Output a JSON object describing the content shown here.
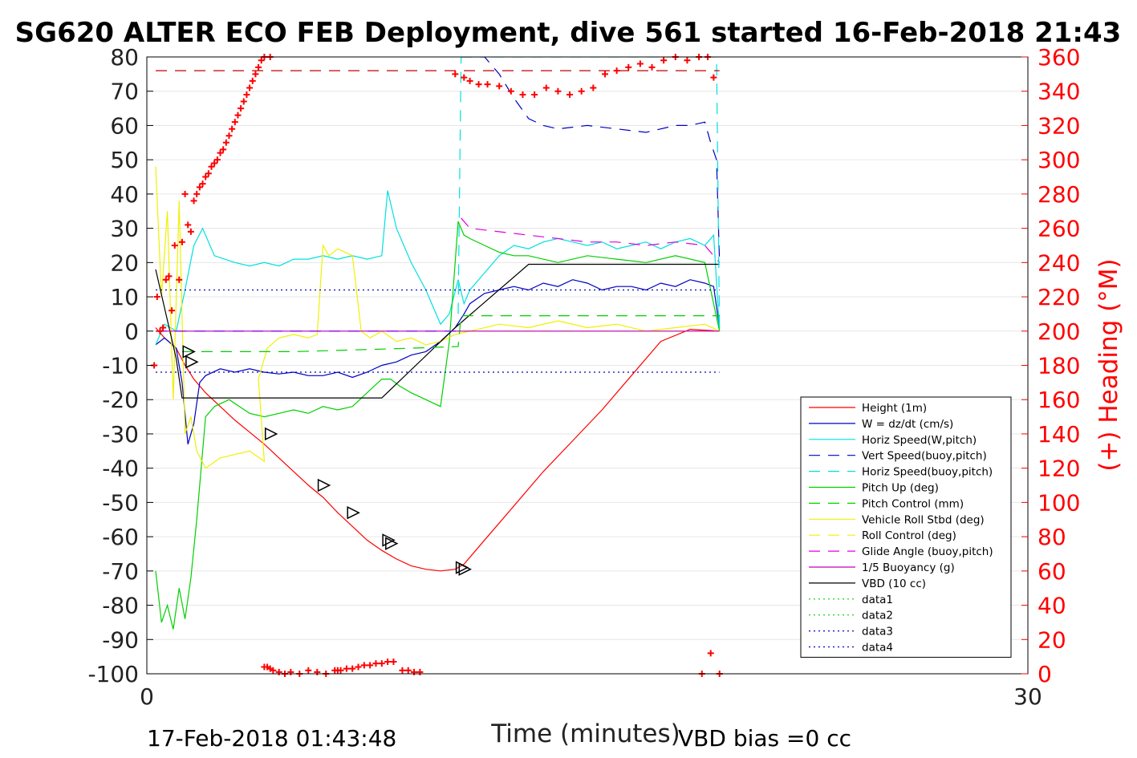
{
  "chart_data": {
    "type": "line",
    "title": "SG620 ALTER ECO FEB Deployment, dive 561 started 16-Feb-2018 21:43",
    "xlabel": "Time (minutes)",
    "ylabel_right": "(+) Heading (°M)",
    "xlim": [
      0,
      30
    ],
    "ylim": [
      -100,
      80
    ],
    "y2lim": [
      0,
      360
    ],
    "x_ticks": [
      "0",
      "30"
    ],
    "y_ticks": [
      "80",
      "70",
      "60",
      "50",
      "40",
      "30",
      "20",
      "10",
      "0",
      "-10",
      "-20",
      "-30",
      "-40",
      "-50",
      "-60",
      "-70",
      "-80",
      "-90",
      "-100"
    ],
    "y2_ticks": [
      "360",
      "340",
      "320",
      "300",
      "280",
      "260",
      "240",
      "220",
      "200",
      "180",
      "160",
      "140",
      "120",
      "100",
      "80",
      "60",
      "40",
      "20",
      "0"
    ],
    "footer_left": "17-Feb-2018 01:43:48",
    "footer_right": "VBD bias =0 cc",
    "grid": true,
    "legend_position": "bottom-right",
    "legend": [
      {
        "name": "Height (1m)",
        "color": "#ff0000",
        "dash": "solid"
      },
      {
        "name": "W = dz/dt (cm/s)",
        "color": "#0000c0",
        "dash": "solid"
      },
      {
        "name": "Horiz Speed(W,pitch)",
        "color": "#00e0e0",
        "dash": "solid"
      },
      {
        "name": "Vert Speed(buoy,pitch)",
        "color": "#0000c0",
        "dash": "dashed"
      },
      {
        "name": "Horiz Speed(buoy,pitch)",
        "color": "#00e0e0",
        "dash": "dashed"
      },
      {
        "name": "Pitch Up (deg)",
        "color": "#00d000",
        "dash": "solid"
      },
      {
        "name": "Pitch Control (mm)",
        "color": "#00d000",
        "dash": "dashed"
      },
      {
        "name": "Vehicle Roll Stbd (deg)",
        "color": "#f0f000",
        "dash": "solid"
      },
      {
        "name": "Roll Control (deg)",
        "color": "#f0f000",
        "dash": "dashed"
      },
      {
        "name": "Glide Angle (buoy,pitch)",
        "color": "#e000e0",
        "dash": "dashed"
      },
      {
        "name": "1/5 Buoyancy (g)",
        "color": "#c000c0",
        "dash": "solid"
      },
      {
        "name": "VBD (10 cc)",
        "color": "#000000",
        "dash": "solid"
      },
      {
        "name": "data1",
        "color": "#00d000",
        "dash": "dotted"
      },
      {
        "name": "data2",
        "color": "#00d000",
        "dash": "dotted"
      },
      {
        "name": "data3",
        "color": "#0000c0",
        "dash": "dotted"
      },
      {
        "name": "data4",
        "color": "#0000c0",
        "dash": "dotted"
      }
    ],
    "series": [
      {
        "name": "Height (1m)",
        "axis": "left",
        "color": "#ff0000",
        "dash": "solid",
        "x": [
          0.3,
          0.6,
          1,
          1.3,
          1.6,
          2,
          2.5,
          3,
          3.5,
          4,
          4.5,
          5,
          5.5,
          6,
          6.5,
          7,
          7.5,
          8,
          8.5,
          9,
          9.5,
          10,
          10.5,
          10.8,
          11.2,
          11.7,
          12.5,
          13.5,
          14.5,
          15.5,
          16.5,
          17.5,
          18.5,
          19.5
        ],
        "y": [
          1,
          -2,
          -5,
          -10,
          -14,
          -18,
          -22,
          -26,
          -29.5,
          -33,
          -37,
          -41,
          -45,
          -48.5,
          -53,
          -57,
          -61,
          -64,
          -66.5,
          -68.5,
          -69.5,
          -70,
          -69.5,
          -68,
          -64,
          -59,
          -51,
          -41,
          -32,
          -23,
          -13,
          -3,
          0.5,
          0
        ]
      },
      {
        "name": "W = dz/dt (cm/s)",
        "axis": "left",
        "color": "#0000c0",
        "dash": "solid",
        "x": [
          0.3,
          0.6,
          1,
          1.2,
          1.4,
          1.6,
          1.8,
          2,
          2.5,
          3,
          3.5,
          4,
          4.5,
          5,
          5.5,
          6,
          6.5,
          7,
          7.5,
          8,
          8.5,
          9,
          9.5,
          10,
          10.5,
          10.8,
          11,
          11.5,
          12,
          12.5,
          13,
          13.5,
          14,
          14.5,
          15,
          15.5,
          16,
          16.5,
          17,
          17.5,
          18,
          18.5,
          19,
          19.3,
          19.5
        ],
        "y": [
          -4,
          -2,
          -5,
          -15,
          -33,
          -27,
          -15,
          -13,
          -11,
          -12,
          -11,
          -12,
          -12.5,
          -12,
          -13,
          -13,
          -12,
          -13.5,
          -12,
          -10,
          -9,
          -7,
          -6,
          -3,
          1,
          5,
          8,
          11,
          12,
          13,
          12,
          14,
          13,
          15,
          14,
          12,
          13,
          13,
          12,
          14,
          13,
          15,
          14,
          13,
          1
        ]
      },
      {
        "name": "Horiz Speed(W,pitch)",
        "axis": "left",
        "color": "#00e0e0",
        "dash": "solid",
        "x": [
          0.3,
          0.6,
          1,
          1.3,
          1.6,
          1.9,
          2.3,
          3,
          3.5,
          4,
          4.5,
          5,
          5.5,
          6,
          6.5,
          7,
          7.5,
          8,
          8.2,
          8.5,
          9,
          9.5,
          10,
          10.3,
          10.6,
          10.8,
          11,
          11.5,
          12,
          12.5,
          13,
          13.5,
          14,
          14.5,
          15,
          15.5,
          16,
          16.5,
          17,
          17.5,
          18,
          18.5,
          19,
          19.3,
          19.5
        ],
        "y": [
          -4,
          2,
          0,
          12,
          25,
          30,
          22,
          20,
          19,
          20,
          19,
          21,
          21,
          22,
          21,
          22,
          21,
          22,
          41,
          30,
          20,
          12,
          2,
          5,
          15,
          8,
          12,
          17,
          22,
          25,
          24,
          26,
          27,
          26,
          25,
          26,
          24,
          25,
          26,
          24,
          26,
          27,
          25,
          28,
          0
        ]
      },
      {
        "name": "Pitch Up (deg)",
        "axis": "left",
        "color": "#00d000",
        "dash": "solid",
        "x": [
          0.3,
          0.5,
          0.7,
          0.9,
          1.1,
          1.3,
          1.5,
          1.7,
          2,
          2.3,
          2.8,
          3.5,
          4,
          4.5,
          5,
          5.5,
          6,
          6.5,
          7,
          7.5,
          8,
          8.3,
          8.6,
          9,
          9.5,
          10,
          10.3,
          10.6,
          10.8,
          11,
          11.5,
          12,
          12.5,
          13,
          14,
          15,
          16,
          17,
          18,
          19,
          19.5
        ],
        "y": [
          -70,
          -85,
          -80,
          -87,
          -75,
          -84,
          -72,
          -55,
          -25,
          -22,
          -20,
          -24,
          -25,
          -24,
          -23,
          -24,
          -22,
          -23,
          -22,
          -18,
          -14,
          -14,
          -16,
          -18,
          -20,
          -22,
          -3,
          32,
          28,
          27,
          25,
          23,
          22,
          22,
          20,
          22,
          21,
          20,
          22,
          20,
          0
        ]
      },
      {
        "name": "Vehicle Roll Stbd (deg)",
        "axis": "left",
        "color": "#f0f000",
        "dash": "solid",
        "x": [
          0.3,
          0.5,
          0.7,
          0.9,
          1.1,
          1.3,
          1.5,
          1.7,
          2,
          2.5,
          3,
          3.5,
          4,
          3.8,
          4.1,
          4.5,
          5,
          5.5,
          5.8,
          6,
          6.2,
          6.5,
          7,
          7.3,
          7.6,
          8,
          8.5,
          9,
          9.5,
          10,
          10.5,
          11,
          12,
          13,
          14,
          15,
          16,
          17,
          18,
          19,
          19.5
        ],
        "y": [
          48,
          10,
          35,
          -20,
          38,
          -30,
          -25,
          -35,
          -40,
          -37,
          -36,
          -35,
          -38,
          -14,
          -5,
          -2,
          -1,
          -2,
          -1,
          25,
          22,
          24,
          22,
          0,
          -2,
          0,
          -3,
          -2,
          -4,
          -3,
          -1,
          0,
          2,
          1,
          3,
          1,
          2,
          0,
          1,
          2,
          0
        ]
      },
      {
        "name": "Glide Angle (buoy,pitch)",
        "axis": "left",
        "color": "#e000e0",
        "dash": "dashed",
        "x": [
          10.7,
          11,
          12,
          13,
          14,
          15,
          16,
          17,
          18,
          19,
          19.5
        ],
        "y": [
          33,
          30,
          29,
          28,
          27,
          26,
          26,
          25,
          26,
          25,
          20
        ]
      },
      {
        "name": "VBD (10 cc)",
        "axis": "left",
        "color": "#000000",
        "dash": "solid",
        "x": [
          0.3,
          1,
          1.2,
          8,
          10.5,
          13,
          19.5
        ],
        "y": [
          18,
          -8,
          -19.5,
          -19.5,
          1,
          19.5,
          19.5
        ]
      },
      {
        "name": "Vert Speed(buoy,pitch)",
        "axis": "left",
        "color": "#0000c0",
        "dash": "dashed",
        "x": [
          10.7,
          10.8,
          11,
          11.5,
          12,
          12.5,
          13,
          13.5,
          14,
          15,
          16,
          17,
          18,
          18.5,
          19,
          19.2,
          19.4,
          19.5
        ],
        "y": [
          80,
          80,
          80,
          80,
          75,
          68,
          62,
          60,
          59,
          60,
          59,
          58,
          60,
          60,
          61,
          55,
          50,
          20
        ]
      },
      {
        "name": "Horiz Speed(buoy,pitch)",
        "axis": "left",
        "color": "#00e0e0",
        "dash": "dashed",
        "x": [
          10.6,
          10.7,
          10.8,
          11,
          19.4,
          19.5
        ],
        "y": [
          5,
          80,
          80,
          80,
          80,
          0
        ]
      },
      {
        "name": "Pitch Control (mm)",
        "axis": "left",
        "color": "#00d000",
        "dash": "dashed",
        "x": [
          1.2,
          3,
          5,
          7,
          9,
          10.6,
          10.7,
          19.5
        ],
        "y": [
          -6,
          -6,
          -6,
          -5.5,
          -5,
          -4.5,
          4.5,
          4.5
        ]
      },
      {
        "name": "Roll Control (deg)",
        "axis": "left",
        "color": "#f0f000",
        "dash": "dashed",
        "x": [
          0.3,
          19.5
        ],
        "y": [
          0,
          0
        ]
      },
      {
        "name": "1/5 Buoyancy (g)",
        "axis": "left",
        "color": "#c000c0",
        "dash": "solid",
        "x": [
          0.3,
          19.5
        ],
        "y": [
          0,
          0
        ]
      },
      {
        "name": "data1",
        "axis": "left",
        "color": "#8000ff",
        "dash": "dashed",
        "x": [
          0.3,
          10.7
        ],
        "y": [
          0,
          0
        ]
      },
      {
        "name": "data3",
        "axis": "left",
        "color": "#0000c0",
        "dash": "dotted",
        "x": [
          0.3,
          19.5
        ],
        "y": [
          12,
          12
        ]
      },
      {
        "name": "data4",
        "axis": "left",
        "color": "#0000c0",
        "dash": "dotted",
        "x": [
          0.3,
          19.5
        ],
        "y": [
          -12,
          -12
        ]
      },
      {
        "name": "data2",
        "axis": "left",
        "color": "#c00000",
        "dash": "dashed",
        "x": [
          0.3,
          19.5
        ],
        "y": [
          76,
          76
        ]
      }
    ],
    "heading_points": {
      "axis": "right",
      "color": "#ff0000",
      "marker": "+",
      "x": [
        0.25,
        0.35,
        0.45,
        0.55,
        0.65,
        0.75,
        0.85,
        0.95,
        1.1,
        1.2,
        1.3,
        1.4,
        1.5,
        1.6,
        1.7,
        1.8,
        1.9,
        2,
        2.1,
        2.2,
        2.3,
        2.4,
        2.5,
        2.6,
        2.7,
        2.8,
        2.9,
        3,
        3.1,
        3.2,
        3.3,
        3.4,
        3.5,
        3.6,
        3.7,
        3.8,
        3.9,
        4.0,
        4.2,
        6.4,
        6.6,
        6.8,
        7,
        7.2,
        7.4,
        7.6,
        7.8,
        8,
        8.2,
        8.4,
        9.3,
        10.5,
        10.8,
        11,
        11.3,
        11.6,
        12,
        12.4,
        12.8,
        13.2,
        13.6,
        14,
        14.4,
        14.8,
        15.2,
        15.6,
        16,
        16.4,
        16.8,
        17.2,
        17.6,
        18,
        18.4,
        18.8,
        19.1,
        19.3,
        4,
        4.1,
        4.2,
        4.3,
        4.5,
        4.7,
        4.9,
        5.2,
        5.5,
        5.8,
        6.1,
        6.5,
        8.7,
        8.9,
        9.1,
        18.9,
        19.2,
        19.5
      ],
      "y": [
        180,
        220,
        200,
        202,
        230,
        232,
        212,
        250,
        230,
        252,
        280,
        262,
        258,
        276,
        280,
        284,
        286,
        290,
        292,
        296,
        298,
        300,
        304,
        306,
        310,
        314,
        318,
        322,
        326,
        330,
        334,
        338,
        342,
        346,
        350,
        354,
        358,
        360,
        360,
        2,
        2,
        3,
        3,
        4,
        5,
        5,
        6,
        6,
        7,
        7,
        1,
        350,
        348,
        346,
        344,
        344,
        343,
        340,
        338,
        338,
        342,
        340,
        338,
        340,
        342,
        350,
        352,
        354,
        356,
        354,
        358,
        360,
        358,
        360,
        360,
        348,
        4,
        4,
        3,
        2,
        1,
        0,
        1,
        0,
        2,
        1,
        0,
        2,
        2,
        2,
        1,
        0,
        12,
        0
      ]
    },
    "triangle_markers": {
      "x": [
        1.4,
        1.5,
        4.2,
        6,
        7,
        8.2,
        8.3,
        10.7,
        10.8
      ],
      "y": [
        -6,
        -9,
        -30,
        -45,
        -53,
        -61,
        -62,
        -69,
        -69.5
      ]
    }
  }
}
